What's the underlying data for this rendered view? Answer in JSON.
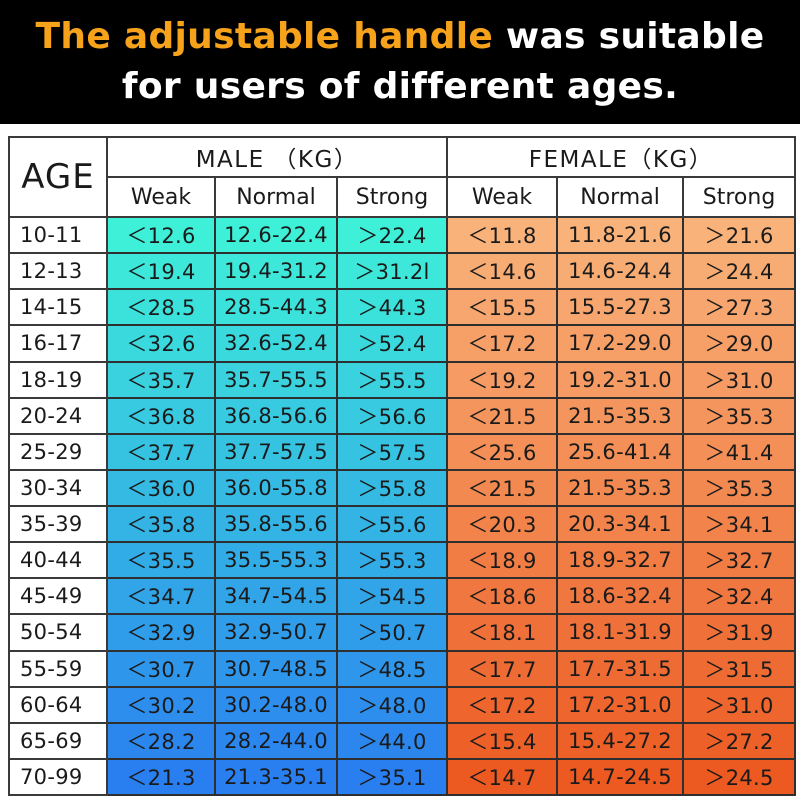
{
  "header": {
    "line1_highlight": "The adjustable handle",
    "line1_rest": " was suitable",
    "line2": "for users of different ages.",
    "highlight_color": "#f6a21a"
  },
  "table": {
    "age_label": "AGE",
    "male_label": "MALE （KG）",
    "female_label": "FEMALE（KG）",
    "sub_headers": [
      "Weak",
      "Normal",
      "Strong",
      "Weak",
      "Normal",
      "Strong"
    ],
    "colors": {
      "male_top": "#3ef0d8",
      "male_bottom": "#2a7ff0",
      "female_top": "#f8b27a",
      "female_bottom": "#ec5a22"
    },
    "rows": [
      {
        "age": "10-11",
        "m_weak": "＜12.6",
        "m_normal": "12.6-22.4",
        "m_strong": "＞22.4",
        "f_weak": "＜11.8",
        "f_normal": "11.8-21.6",
        "f_strong": "＞21.6"
      },
      {
        "age": "12-13",
        "m_weak": "＜19.4",
        "m_normal": "19.4-31.2",
        "m_strong": "＞31.2l",
        "f_weak": "＜14.6",
        "f_normal": "14.6-24.4",
        "f_strong": "＞24.4"
      },
      {
        "age": "14-15",
        "m_weak": "＜28.5",
        "m_normal": "28.5-44.3",
        "m_strong": "＞44.3",
        "f_weak": "＜15.5",
        "f_normal": "15.5-27.3",
        "f_strong": "＞27.3"
      },
      {
        "age": "16-17",
        "m_weak": "＜32.6",
        "m_normal": "32.6-52.4",
        "m_strong": "＞52.4",
        "f_weak": "＜17.2",
        "f_normal": "17.2-29.0",
        "f_strong": "＞29.0"
      },
      {
        "age": "18-19",
        "m_weak": "＜35.7",
        "m_normal": "35.7-55.5",
        "m_strong": "＞55.5",
        "f_weak": "＜19.2",
        "f_normal": "19.2-31.0",
        "f_strong": "＞31.0"
      },
      {
        "age": "20-24",
        "m_weak": "＜36.8",
        "m_normal": "36.8-56.6",
        "m_strong": "＞56.6",
        "f_weak": "＜21.5",
        "f_normal": "21.5-35.3",
        "f_strong": "＞35.3"
      },
      {
        "age": "25-29",
        "m_weak": "＜37.7",
        "m_normal": "37.7-57.5",
        "m_strong": "＞57.5",
        "f_weak": "＜25.6",
        "f_normal": "25.6-41.4",
        "f_strong": "＞41.4"
      },
      {
        "age": "30-34",
        "m_weak": "＜36.0",
        "m_normal": "36.0-55.8",
        "m_strong": "＞55.8",
        "f_weak": "＜21.5",
        "f_normal": "21.5-35.3",
        "f_strong": "＞35.3"
      },
      {
        "age": "35-39",
        "m_weak": "＜35.8",
        "m_normal": "35.8-55.6",
        "m_strong": "＞55.6",
        "f_weak": "＜20.3",
        "f_normal": "20.3-34.1",
        "f_strong": "＞34.1"
      },
      {
        "age": "40-44",
        "m_weak": "＜35.5",
        "m_normal": "35.5-55.3",
        "m_strong": "＞55.3",
        "f_weak": "＜18.9",
        "f_normal": "18.9-32.7",
        "f_strong": "＞32.7"
      },
      {
        "age": "45-49",
        "m_weak": "＜34.7",
        "m_normal": "34.7-54.5",
        "m_strong": "＞54.5",
        "f_weak": "＜18.6",
        "f_normal": "18.6-32.4",
        "f_strong": "＞32.4"
      },
      {
        "age": "50-54",
        "m_weak": "＜32.9",
        "m_normal": "32.9-50.7",
        "m_strong": "＞50.7",
        "f_weak": "＜18.1",
        "f_normal": "18.1-31.9",
        "f_strong": "＞31.9"
      },
      {
        "age": "55-59",
        "m_weak": "＜30.7",
        "m_normal": "30.7-48.5",
        "m_strong": "＞48.5",
        "f_weak": "＜17.7",
        "f_normal": "17.7-31.5",
        "f_strong": "＞31.5"
      },
      {
        "age": "60-64",
        "m_weak": "＜30.2",
        "m_normal": "30.2-48.0",
        "m_strong": "＞48.0",
        "f_weak": "＜17.2",
        "f_normal": "17.2-31.0",
        "f_strong": "＞31.0"
      },
      {
        "age": "65-69",
        "m_weak": "＜28.2",
        "m_normal": "28.2-44.0",
        "m_strong": "＞44.0",
        "f_weak": "＜15.4",
        "f_normal": "15.4-27.2",
        "f_strong": "＞27.2"
      },
      {
        "age": "70-99",
        "m_weak": "＜21.3",
        "m_normal": "21.3-35.1",
        "m_strong": "＞35.1",
        "f_weak": "＜14.7",
        "f_normal": "14.7-24.5",
        "f_strong": "＞24.5"
      }
    ]
  }
}
